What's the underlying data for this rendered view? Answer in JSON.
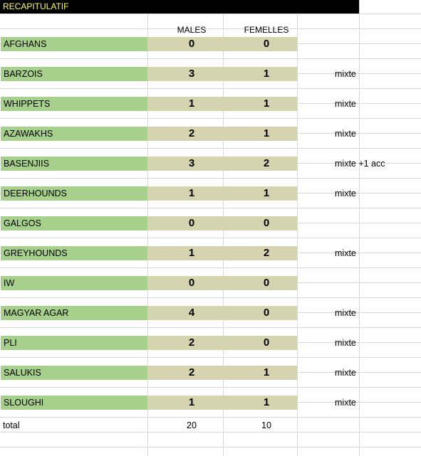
{
  "title": "RECAPITULATIF",
  "headers": {
    "males": "MALES",
    "females": "FEMELLES"
  },
  "rows": [
    {
      "breed": "AFGHANS",
      "males": "0",
      "females": "0",
      "note": ""
    },
    {
      "breed": "BARZOIS",
      "males": "3",
      "females": "1",
      "note": "mixte"
    },
    {
      "breed": "WHIPPETS",
      "males": "1",
      "females": "1",
      "note": "mixte"
    },
    {
      "breed": "AZAWAKHS",
      "males": "2",
      "females": "1",
      "note": "mixte"
    },
    {
      "breed": "BASENJIIS",
      "males": "3",
      "females": "2",
      "note": "mixte +1 acc"
    },
    {
      "breed": "DEERHOUNDS",
      "males": "1",
      "females": "1",
      "note": "mixte"
    },
    {
      "breed": "GALGOS",
      "males": "0",
      "females": "0",
      "note": ""
    },
    {
      "breed": "GREYHOUNDS",
      "males": "1",
      "females": "2",
      "note": "mixte"
    },
    {
      "breed": "IW",
      "males": "0",
      "females": "0",
      "note": ""
    },
    {
      "breed": "MAGYAR AGAR",
      "males": "4",
      "females": "0",
      "note": "mixte"
    },
    {
      "breed": "PLI",
      "males": "2",
      "females": "0",
      "note": "mixte"
    },
    {
      "breed": "SALUKIS",
      "males": "2",
      "females": "1",
      "note": "mixte"
    },
    {
      "breed": "SLOUGHI",
      "males": "1",
      "females": "1",
      "note": "mixte"
    }
  ],
  "total": {
    "label": "total",
    "males": "20",
    "females": "10"
  },
  "colors": {
    "title_bg": "#000000",
    "title_text": "#ffff66",
    "breed_bg": "#a8d08d",
    "value_bg": "#d6d4b0",
    "grid": "#d9d9d9"
  }
}
